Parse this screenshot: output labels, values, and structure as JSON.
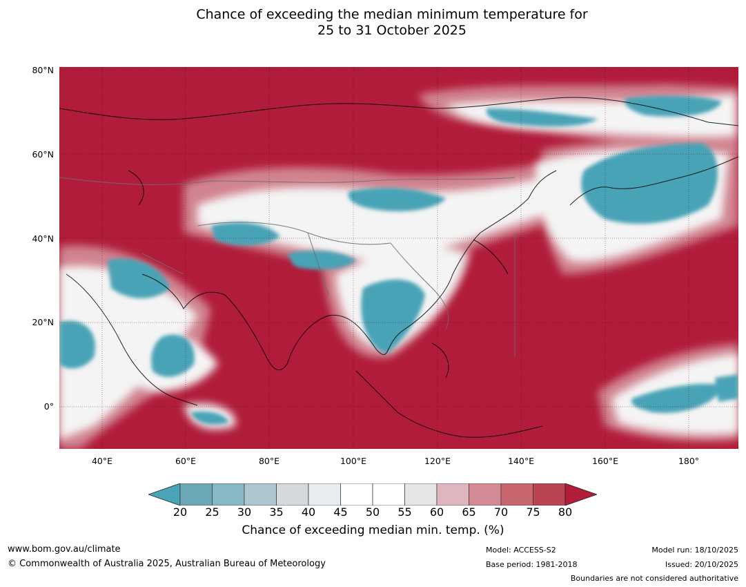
{
  "title": {
    "line1": "Chance of exceeding the median minimum temperature for",
    "line2": "25 to 31 October 2025"
  },
  "axes": {
    "lat_labels": [
      "80°N",
      "60°N",
      "40°N",
      "20°N",
      "0°"
    ],
    "lon_labels": [
      "40°E",
      "60°E",
      "80°E",
      "100°E",
      "120°E",
      "140°E",
      "160°E",
      "180°"
    ]
  },
  "colorbar": {
    "ticks": [
      "20",
      "25",
      "30",
      "35",
      "40",
      "45",
      "50",
      "55",
      "60",
      "65",
      "70",
      "75",
      "80"
    ],
    "colors": [
      "#4aa3b6",
      "#6aa8b6",
      "#89b8c5",
      "#adc6cd",
      "#d3d9dc",
      "#e8eef0",
      "#ffffff",
      "#ffffff",
      "#e6e6e6",
      "#dfb6bd",
      "#d38a95",
      "#c7666f",
      "#ba4452",
      "#b01c3a"
    ],
    "label": "Chance of exceeding median min. temp. (%)"
  },
  "footer": {
    "website": "www.bom.gov.au/climate",
    "copyright": "© Commonwealth of Australia 2025, Australian Bureau of Meteorology",
    "model": "Model: ACCESS-S2",
    "base_period": "Base period: 1981-2018",
    "model_run": "Model run: 18/10/2025",
    "issued": "Issued: 20/10/2025",
    "disclaimer": "Boundaries are not considered authoritative"
  }
}
